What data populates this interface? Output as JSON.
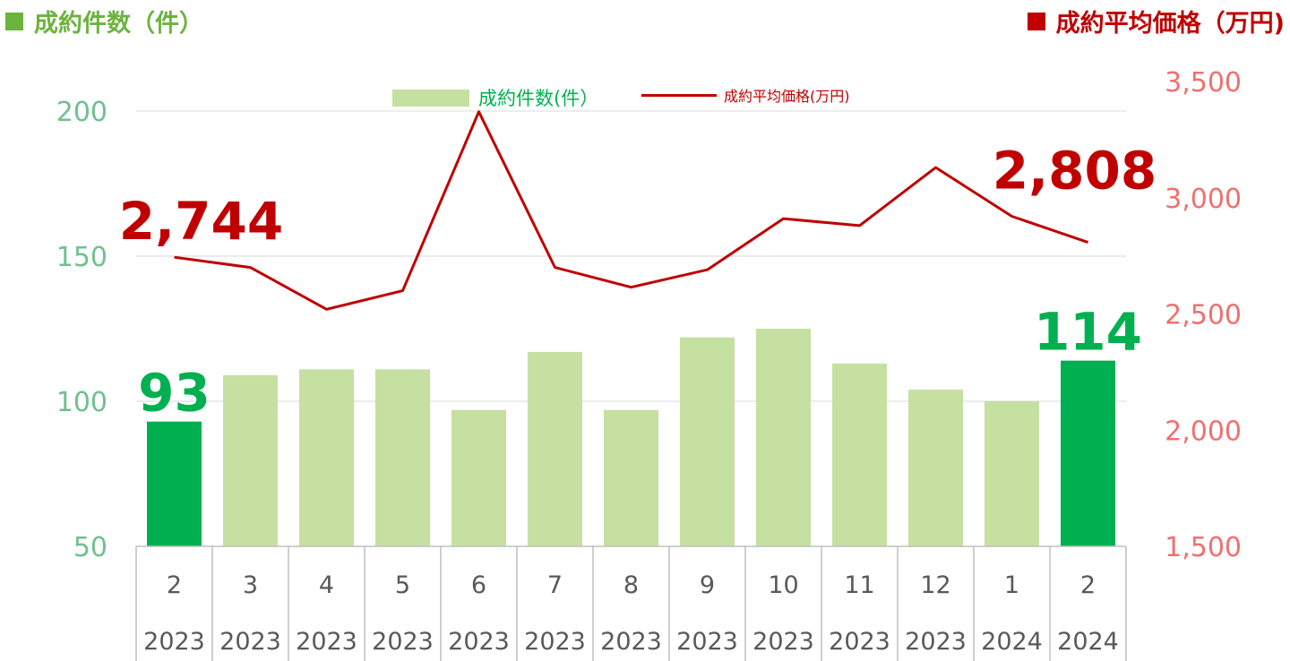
{
  "header": {
    "left_title": "成約件数（件）",
    "right_title": "成約平均価格（万円)",
    "left_color": "#6cb33e",
    "right_color": "#c00000"
  },
  "legend": {
    "bars_label": "成約件数(件）",
    "line_label": "成約平均価格(万円)"
  },
  "chart_data": {
    "type": "bar+line",
    "categories": [
      "2",
      "3",
      "4",
      "5",
      "6",
      "7",
      "8",
      "9",
      "10",
      "11",
      "12",
      "1",
      "2"
    ],
    "category_years": [
      "2023",
      "2023",
      "2023",
      "2023",
      "2023",
      "2023",
      "2023",
      "2023",
      "2023",
      "2023",
      "2023",
      "2024",
      "2024"
    ],
    "series": [
      {
        "name": "成約件数(件）",
        "type": "bar",
        "axis": "left",
        "values": [
          93,
          109,
          111,
          111,
          97,
          117,
          97,
          122,
          125,
          113,
          104,
          100,
          114
        ],
        "color": "#c5e0a0",
        "highlight_color": "#00b050",
        "highlight_indices": [
          0,
          12
        ]
      },
      {
        "name": "成約平均価格(万円)",
        "type": "line",
        "axis": "right",
        "values": [
          2744,
          2700,
          2520,
          2600,
          3370,
          2700,
          2615,
          2690,
          2910,
          2880,
          3130,
          2920,
          2808
        ],
        "color": "#c00000"
      }
    ],
    "left_axis": {
      "min": 50,
      "max": 200,
      "ticks": [
        50,
        100,
        150,
        200
      ],
      "color": "#70c090"
    },
    "right_axis": {
      "min": 1500,
      "max": 3500,
      "ticks": [
        1500,
        2000,
        2500,
        3000,
        3500
      ],
      "color": "#f07070"
    },
    "annotations": [
      {
        "series": 0,
        "index": 0,
        "text": "93",
        "color": "#00b050"
      },
      {
        "series": 0,
        "index": 12,
        "text": "114",
        "color": "#00b050"
      },
      {
        "series": 1,
        "index": 0,
        "text": "2,744",
        "color": "#c00000"
      },
      {
        "series": 1,
        "index": 12,
        "text": "2,808",
        "color": "#c00000"
      }
    ],
    "grid": true
  }
}
